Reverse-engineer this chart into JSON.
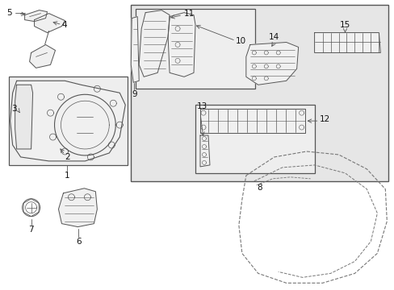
{
  "bg_color": "#ffffff",
  "lc": "#555555",
  "fill_light": "#f0f0f0",
  "fill_box": "#e6e6e6",
  "fill_innerbox": "#eeeeee",
  "text_color": "#111111",
  "label_fontsize": 7.5
}
